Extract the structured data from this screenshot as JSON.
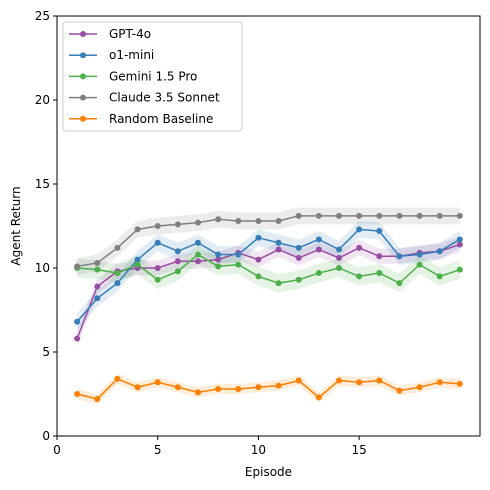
{
  "chart_data": {
    "type": "line",
    "xlabel": "Episode",
    "ylabel": "Agent Return",
    "xlim": [
      0,
      21
    ],
    "ylim": [
      0,
      25
    ],
    "xticks": [
      0,
      5,
      10,
      15
    ],
    "yticks": [
      0,
      5,
      10,
      15,
      20,
      25
    ],
    "grid": false,
    "legend_position": "top-left",
    "x": [
      1,
      2,
      3,
      4,
      5,
      6,
      7,
      8,
      9,
      10,
      11,
      12,
      13,
      14,
      15,
      16,
      17,
      18,
      19,
      20
    ],
    "series": [
      {
        "name": "GPT-4o",
        "color": "#984ea3",
        "values": [
          5.8,
          8.9,
          9.8,
          10.0,
          10.0,
          10.4,
          10.4,
          10.5,
          10.9,
          10.5,
          11.1,
          10.6,
          11.1,
          10.6,
          11.2,
          10.7,
          10.7,
          10.9,
          11.0,
          11.4
        ],
        "band": 0.45
      },
      {
        "name": "o1-mini",
        "color": "#377eb8",
        "values": [
          6.8,
          8.2,
          9.1,
          10.5,
          11.5,
          11.0,
          11.5,
          10.8,
          10.8,
          11.8,
          11.5,
          11.2,
          11.7,
          11.1,
          12.3,
          12.2,
          10.7,
          10.8,
          11.0,
          11.7
        ],
        "band": 0.5
      },
      {
        "name": "Gemini 1.5 Pro",
        "color": "#4daf4a",
        "values": [
          10.0,
          9.9,
          9.7,
          10.2,
          9.3,
          9.8,
          10.8,
          10.1,
          10.2,
          9.5,
          9.1,
          9.3,
          9.7,
          10.0,
          9.5,
          9.7,
          9.1,
          10.2,
          9.5,
          9.9
        ],
        "band": 0.55
      },
      {
        "name": "Claude 3.5 Sonnet",
        "color": "#808080",
        "values": [
          10.1,
          10.3,
          11.2,
          12.3,
          12.5,
          12.6,
          12.7,
          12.9,
          12.8,
          12.8,
          12.8,
          13.1,
          13.1,
          13.1,
          13.1,
          13.1,
          13.1,
          13.1,
          13.1,
          13.1
        ],
        "band": 0.5
      },
      {
        "name": "Random Baseline",
        "color": "#ff7f00",
        "values": [
          2.5,
          2.2,
          3.4,
          2.9,
          3.2,
          2.9,
          2.6,
          2.8,
          2.8,
          2.9,
          3.0,
          3.3,
          2.3,
          3.3,
          3.2,
          3.3,
          2.7,
          2.9,
          3.2,
          3.1
        ],
        "band": 0.3
      }
    ]
  }
}
